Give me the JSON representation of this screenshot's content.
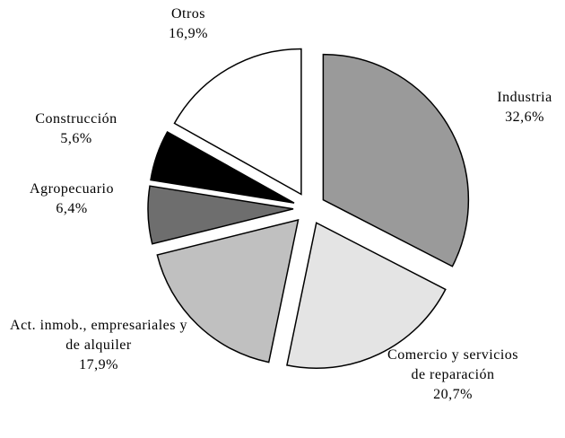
{
  "chart_data": {
    "type": "pie",
    "categories": [
      "Industria",
      "Comercio y servicios de reparación",
      "Act. inmob., empresariales y de alquiler",
      "Agropecuario",
      "Construcción",
      "Otros"
    ],
    "values": [
      32.6,
      20.7,
      17.9,
      6.4,
      5.6,
      16.9
    ],
    "value_labels": [
      "32,6%",
      "20,7%",
      "17,9%",
      "6,4%",
      "5,6%",
      "16,9%"
    ],
    "colors": [
      "#9a9a9a",
      "#e4e4e4",
      "#c0c0c0",
      "#6e6e6e",
      "#000000",
      "#ffffff"
    ]
  }
}
